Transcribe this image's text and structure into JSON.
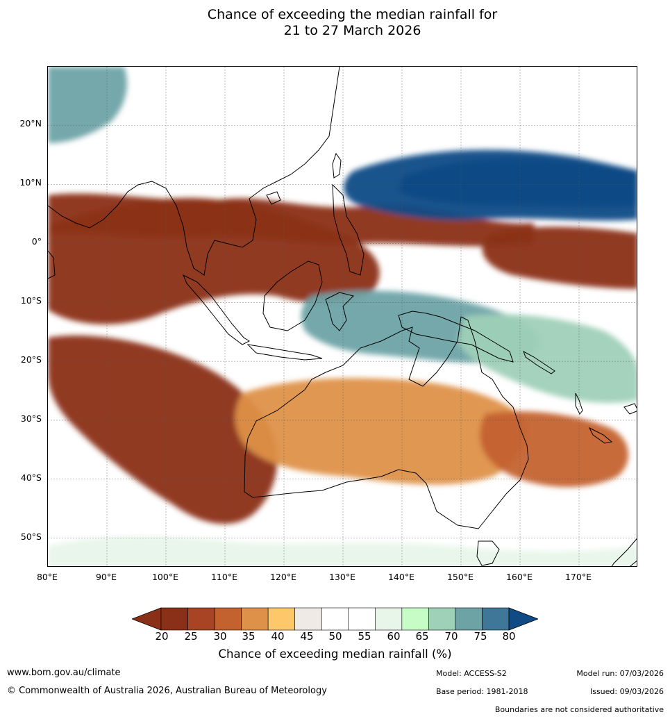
{
  "title": {
    "line1": "Chance of exceeding the median rainfall for",
    "line2": "21 to 27 March 2026"
  },
  "map": {
    "region": "Australasia and Indian/Pacific Oceans",
    "lon_range": [
      80,
      180
    ],
    "lat_range": [
      -55,
      30
    ],
    "lat_labels": [
      "20°N",
      "10°N",
      "0°",
      "10°S",
      "20°S",
      "30°S",
      "40°S",
      "50°S"
    ],
    "lon_labels": [
      "80°E",
      "90°E",
      "100°E",
      "110°E",
      "120°E",
      "130°E",
      "140°E",
      "150°E",
      "160°E",
      "170°E"
    ],
    "regions": [
      {
        "name": "northern-indian-ocean-dry-band",
        "value": 22
      },
      {
        "name": "maritime-continent-dry",
        "value": 22
      },
      {
        "name": "western-indian-ocean-dry",
        "value": 24
      },
      {
        "name": "north-pacific-wet-band",
        "value": 80
      },
      {
        "name": "north-pacific-wet-core",
        "value": 82
      },
      {
        "name": "northern-australia-wet",
        "value": 78
      },
      {
        "name": "coral-sea-wet",
        "value": 74
      },
      {
        "name": "east-equatorial-pacific-dry",
        "value": 22
      },
      {
        "name": "south-china-wet",
        "value": 78
      },
      {
        "name": "southern-australia-dry",
        "value": 35
      },
      {
        "name": "southern-ocean-wet-patches",
        "value": 63
      },
      {
        "name": "tasman-sea-dry",
        "value": 33
      }
    ]
  },
  "colorbar": {
    "ticks": [
      "20",
      "25",
      "30",
      "35",
      "40",
      "45",
      "50",
      "55",
      "60",
      "65",
      "70",
      "75",
      "80"
    ],
    "colors": [
      "#8b3018",
      "#a84424",
      "#c4622f",
      "#de9148",
      "#fdc86a",
      "#efeae6",
      "#ffffff",
      "#ffffff",
      "#e8f6ea",
      "#c7fcc7",
      "#9fd0b8",
      "#6ea3a6",
      "#3e7798"
    ],
    "under_color": "#8b3018",
    "over_color": "#114b86",
    "label": "Chance of exceeding median rainfall (%)"
  },
  "footer": {
    "website": "www.bom.gov.au/climate",
    "copyright": "© Commonwealth of Australia 2026, Australian Bureau of Meteorology",
    "model": "Model: ACCESS-S2",
    "base_period": "Base period: 1981-2018",
    "model_run": "Model run: 07/03/2026",
    "issued": "Issued: 09/03/2026",
    "disclaimer": "Boundaries are not considered authoritative"
  }
}
